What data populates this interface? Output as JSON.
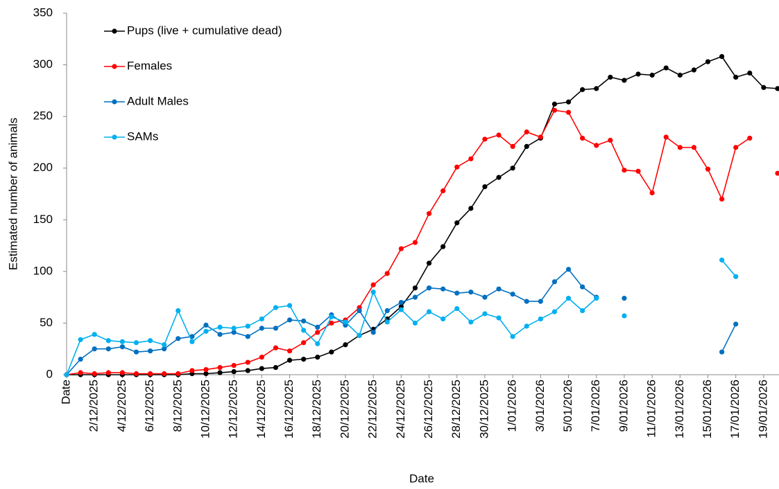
{
  "chart_data": {
    "type": "line",
    "x_label": "Date",
    "y_label": "Estimated number of animals",
    "categories": [
      "Date",
      null,
      "2/12/2025",
      null,
      "4/12/2025",
      null,
      "6/12/2025",
      null,
      "8/12/2025",
      null,
      "10/12/2025",
      null,
      "12/12/2025",
      null,
      "14/12/2025",
      null,
      "16/12/2025",
      null,
      "18/12/2025",
      null,
      "20/12/2025",
      null,
      "22/12/2025",
      null,
      "24/12/2025",
      null,
      "26/12/2025",
      null,
      "28/12/2025",
      null,
      "30/12/2025",
      null,
      "1/01/2026",
      null,
      "3/01/2026",
      null,
      "5/01/2026",
      null,
      "7/01/2026",
      null,
      "9/01/2026",
      null,
      "11/01/2026",
      null,
      "13/01/2026",
      null,
      "15/01/2026",
      null,
      "17/01/2026",
      null,
      "19/01/2026",
      null
    ],
    "series": [
      {
        "name": "Pups (live + cumulative dead)",
        "color": "#000000",
        "values": [
          0,
          0,
          0,
          0,
          0,
          0,
          0,
          0,
          0,
          1,
          1,
          2,
          3,
          4,
          6,
          7,
          14,
          15,
          17,
          22,
          29,
          38,
          44,
          54,
          66,
          84,
          108,
          124,
          147,
          161,
          182,
          191,
          200,
          221,
          229,
          262,
          264,
          276,
          277,
          288,
          285,
          291,
          290,
          297,
          290,
          295,
          303,
          308,
          288,
          292,
          278,
          277
        ]
      },
      {
        "name": "Females",
        "color": "#ff0000",
        "values": [
          0,
          2,
          1,
          2,
          2,
          1,
          1,
          1,
          1,
          4,
          5,
          7,
          9,
          12,
          17,
          26,
          23,
          31,
          41,
          50,
          53,
          65,
          87,
          98,
          122,
          128,
          156,
          178,
          201,
          209,
          228,
          232,
          221,
          235,
          230,
          256,
          254,
          229,
          222,
          227,
          198,
          197,
          176,
          230,
          220,
          220,
          199,
          170,
          220,
          229,
          null,
          195
        ]
      },
      {
        "name": "Adult Males",
        "color": "#0070c0",
        "values": [
          0,
          15,
          25,
          25,
          27,
          22,
          23,
          25,
          35,
          37,
          48,
          39,
          41,
          37,
          45,
          45,
          53,
          52,
          46,
          58,
          48,
          62,
          41,
          62,
          70,
          75,
          84,
          83,
          79,
          80,
          75,
          83,
          78,
          71,
          71,
          90,
          102,
          85,
          75,
          null,
          74,
          null,
          null,
          null,
          null,
          null,
          null,
          22,
          49,
          null,
          null,
          null
        ]
      },
      {
        "name": "SAMs",
        "color": "#00b0f0",
        "values": [
          0,
          34,
          39,
          33,
          32,
          31,
          33,
          29,
          62,
          32,
          42,
          46,
          45,
          47,
          54,
          65,
          67,
          43,
          30,
          56,
          51,
          38,
          80,
          51,
          63,
          50,
          61,
          54,
          64,
          51,
          59,
          55,
          37,
          47,
          54,
          61,
          74,
          62,
          74,
          null,
          57,
          null,
          null,
          null,
          null,
          null,
          null,
          111,
          95,
          null,
          null,
          null
        ]
      }
    ],
    "ylim": [
      0,
      350
    ],
    "yticks": [
      0,
      50,
      100,
      150,
      200,
      250,
      300,
      350
    ],
    "legend": "top-left",
    "grid": false
  }
}
